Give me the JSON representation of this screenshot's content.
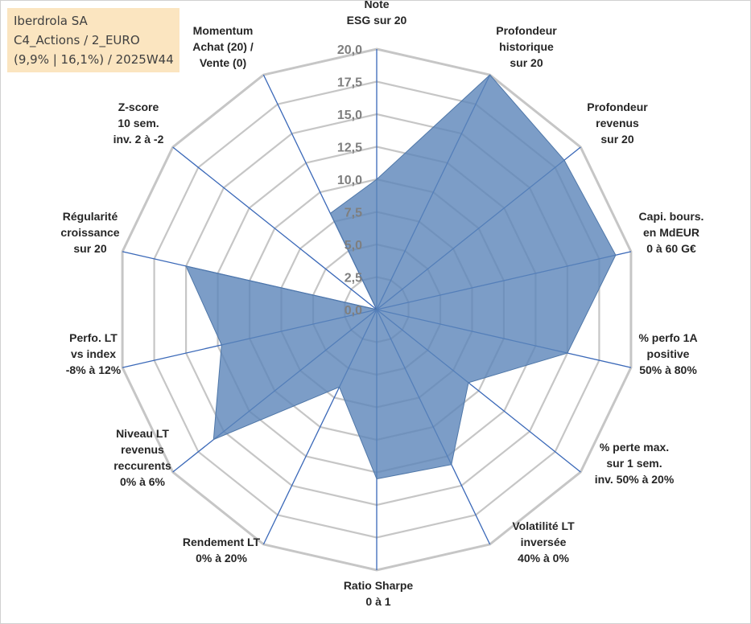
{
  "title_box": {
    "line1": "Iberdrola SA",
    "line2": "C4_Actions / 2_EURO",
    "line3": "(9,9% | 16,1%) / 2025W44"
  },
  "chart_data": {
    "type": "radar",
    "title": "Iberdrola SA",
    "scale": {
      "min": 0,
      "max": 20,
      "step": 2.5
    },
    "tick_labels": [
      "0,0",
      "2,5",
      "5,0",
      "7,5",
      "10,0",
      "12,5",
      "15,0",
      "17,5",
      "20,0"
    ],
    "axes": [
      {
        "lines": [
          "Note",
          "ESG sur 20"
        ]
      },
      {
        "lines": [
          "Profondeur",
          "historique",
          "sur 20"
        ]
      },
      {
        "lines": [
          "Profondeur",
          "revenus",
          "sur 20"
        ]
      },
      {
        "lines": [
          "Capi. bours.",
          "en MdEUR",
          "0 à 60 G€"
        ]
      },
      {
        "lines": [
          "% perfo 1A",
          "positive",
          "50% à 80%"
        ]
      },
      {
        "lines": [
          "% perte max.",
          "sur 1 sem.",
          "inv. 50% à 20%"
        ]
      },
      {
        "lines": [
          "Volatilité LT",
          "inversée",
          "40% à 0%"
        ]
      },
      {
        "lines": [
          "Ratio Sharpe",
          "0 à 1"
        ]
      },
      {
        "lines": [
          "Rendement LT",
          "0% à 20%"
        ]
      },
      {
        "lines": [
          "Niveau LT",
          "revenus",
          "reccurents",
          "0% à 6%"
        ]
      },
      {
        "lines": [
          "Perfo. LT",
          "vs index",
          "-8% à 12%"
        ]
      },
      {
        "lines": [
          "Régularité",
          "croissance",
          "sur 20"
        ]
      },
      {
        "lines": [
          "Z-score",
          "10 sem.",
          "inv. 2 à -2"
        ]
      },
      {
        "lines": [
          "Momentum",
          "Achat (20) /",
          "Vente (0)"
        ]
      }
    ],
    "series": [
      {
        "name": "Iberdrola SA",
        "values": [
          10.0,
          20.0,
          18.4,
          18.8,
          15.0,
          9.0,
          13.2,
          13.0,
          6.6,
          16.0,
          12.2,
          15.0,
          0.0,
          8.2
        ],
        "fill": "#5b85b9",
        "stroke": "#4f77a8"
      }
    ],
    "colors": {
      "grid": "#c6c6c6",
      "spoke": "#3a68b8",
      "tick": "#7f7f7f",
      "label": "#262626"
    }
  }
}
